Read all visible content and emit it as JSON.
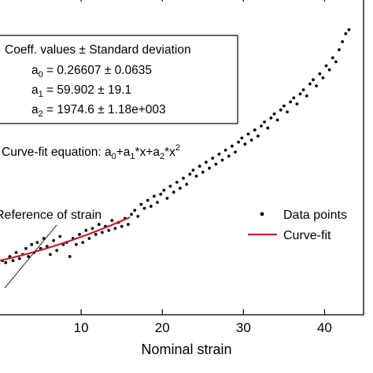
{
  "chart_data": {
    "type": "scatter",
    "xlabel": "Nominal strain",
    "x_ticks": [
      "10",
      "20",
      "30",
      "40"
    ],
    "x_tick_values": [
      10,
      20,
      30,
      40
    ],
    "xlim": [
      0,
      45
    ],
    "ylim": [
      0,
      1.45
    ],
    "coeff_box": {
      "title": "Coeff. values ± Standard deviation",
      "coefficients": [
        {
          "symbol": "a",
          "sub": "0",
          "text": " = 0.26607 ± 0.0635"
        },
        {
          "symbol": "a",
          "sub": "1",
          "text": " = 59.902 ± 19.1"
        },
        {
          "symbol": "a",
          "sub": "2",
          "text": " = 1974.6 ± 1.18e+003"
        }
      ]
    },
    "equation": {
      "prefix": "Curve-fit equation: ",
      "parts": [
        {
          "t": "a"
        },
        {
          "sub": "0"
        },
        {
          "t": "+a"
        },
        {
          "sub": "1"
        },
        {
          "t": "*x+a"
        },
        {
          "sub": "2"
        },
        {
          "t": "*x"
        },
        {
          "sup": "2"
        }
      ]
    },
    "annotation": "Reference of strain",
    "legend": {
      "position": "right",
      "entries": [
        {
          "label": "Data points",
          "marker": "dot",
          "color": "#000000"
        },
        {
          "label": "Curve-fit",
          "marker": "line",
          "color": "#c8202a"
        }
      ]
    },
    "series": [
      {
        "name": "Data points",
        "color": "#000000",
        "points": [
          [
            0.3,
            0.27
          ],
          [
            0.7,
            0.26
          ],
          [
            1.2,
            0.29
          ],
          [
            1.6,
            0.27
          ],
          [
            2.0,
            0.31
          ],
          [
            2.4,
            0.28
          ],
          [
            2.8,
            0.3
          ],
          [
            3.2,
            0.33
          ],
          [
            3.5,
            0.29
          ],
          [
            3.9,
            0.35
          ],
          [
            4.2,
            0.31
          ],
          [
            4.6,
            0.36
          ],
          [
            5.0,
            0.33
          ],
          [
            5.4,
            0.38
          ],
          [
            5.8,
            0.34
          ],
          [
            6.2,
            0.3
          ],
          [
            6.6,
            0.37
          ],
          [
            7.0,
            0.32
          ],
          [
            7.4,
            0.39
          ],
          [
            7.8,
            0.35
          ],
          [
            8.2,
            0.36
          ],
          [
            8.6,
            0.29
          ],
          [
            9.0,
            0.38
          ],
          [
            9.4,
            0.35
          ],
          [
            9.8,
            0.4
          ],
          [
            10.2,
            0.36
          ],
          [
            10.6,
            0.42
          ],
          [
            11.0,
            0.38
          ],
          [
            11.4,
            0.43
          ],
          [
            11.8,
            0.4
          ],
          [
            12.2,
            0.45
          ],
          [
            12.6,
            0.41
          ],
          [
            13.0,
            0.44
          ],
          [
            13.4,
            0.42
          ],
          [
            13.8,
            0.47
          ],
          [
            14.2,
            0.43
          ],
          [
            14.6,
            0.46
          ],
          [
            15.0,
            0.44
          ],
          [
            15.4,
            0.48
          ],
          [
            15.8,
            0.45
          ],
          [
            16.2,
            0.5
          ],
          [
            16.6,
            0.52
          ],
          [
            17.0,
            0.49
          ],
          [
            17.4,
            0.55
          ],
          [
            17.8,
            0.53
          ],
          [
            18.2,
            0.57
          ],
          [
            18.6,
            0.54
          ],
          [
            19.0,
            0.59
          ],
          [
            19.4,
            0.56
          ],
          [
            19.8,
            0.6
          ],
          [
            20.2,
            0.62
          ],
          [
            20.6,
            0.58
          ],
          [
            21.0,
            0.64
          ],
          [
            21.4,
            0.61
          ],
          [
            21.8,
            0.66
          ],
          [
            22.2,
            0.63
          ],
          [
            22.6,
            0.68
          ],
          [
            23.0,
            0.65
          ],
          [
            23.4,
            0.7
          ],
          [
            23.8,
            0.72
          ],
          [
            24.2,
            0.69
          ],
          [
            24.6,
            0.74
          ],
          [
            25.0,
            0.71
          ],
          [
            25.4,
            0.76
          ],
          [
            25.8,
            0.73
          ],
          [
            26.2,
            0.78
          ],
          [
            26.6,
            0.75
          ],
          [
            27.0,
            0.8
          ],
          [
            27.4,
            0.77
          ],
          [
            27.8,
            0.82
          ],
          [
            28.2,
            0.79
          ],
          [
            28.6,
            0.84
          ],
          [
            29.0,
            0.81
          ],
          [
            29.4,
            0.86
          ],
          [
            29.8,
            0.88
          ],
          [
            30.2,
            0.85
          ],
          [
            30.6,
            0.9
          ],
          [
            31.0,
            0.87
          ],
          [
            31.4,
            0.92
          ],
          [
            31.8,
            0.89
          ],
          [
            32.2,
            0.94
          ],
          [
            32.6,
            0.96
          ],
          [
            33.0,
            0.93
          ],
          [
            33.4,
            0.98
          ],
          [
            33.8,
            1.0
          ],
          [
            34.2,
            0.97
          ],
          [
            34.6,
            1.02
          ],
          [
            35.0,
            1.04
          ],
          [
            35.4,
            1.01
          ],
          [
            35.8,
            1.06
          ],
          [
            36.2,
            1.08
          ],
          [
            36.6,
            1.05
          ],
          [
            37.0,
            1.1
          ],
          [
            37.4,
            1.12
          ],
          [
            37.8,
            1.09
          ],
          [
            38.2,
            1.15
          ],
          [
            38.6,
            1.17
          ],
          [
            39.0,
            1.14
          ],
          [
            39.4,
            1.2
          ],
          [
            39.8,
            1.18
          ],
          [
            40.2,
            1.24
          ],
          [
            40.6,
            1.22
          ],
          [
            41.0,
            1.28
          ],
          [
            41.4,
            1.26
          ],
          [
            41.8,
            1.32
          ],
          [
            42.2,
            1.36
          ],
          [
            42.6,
            1.4
          ],
          [
            43.0,
            1.42
          ]
        ]
      },
      {
        "name": "Curve-fit",
        "color": "#c8202a",
        "x_range": [
          0,
          16
        ]
      }
    ]
  }
}
